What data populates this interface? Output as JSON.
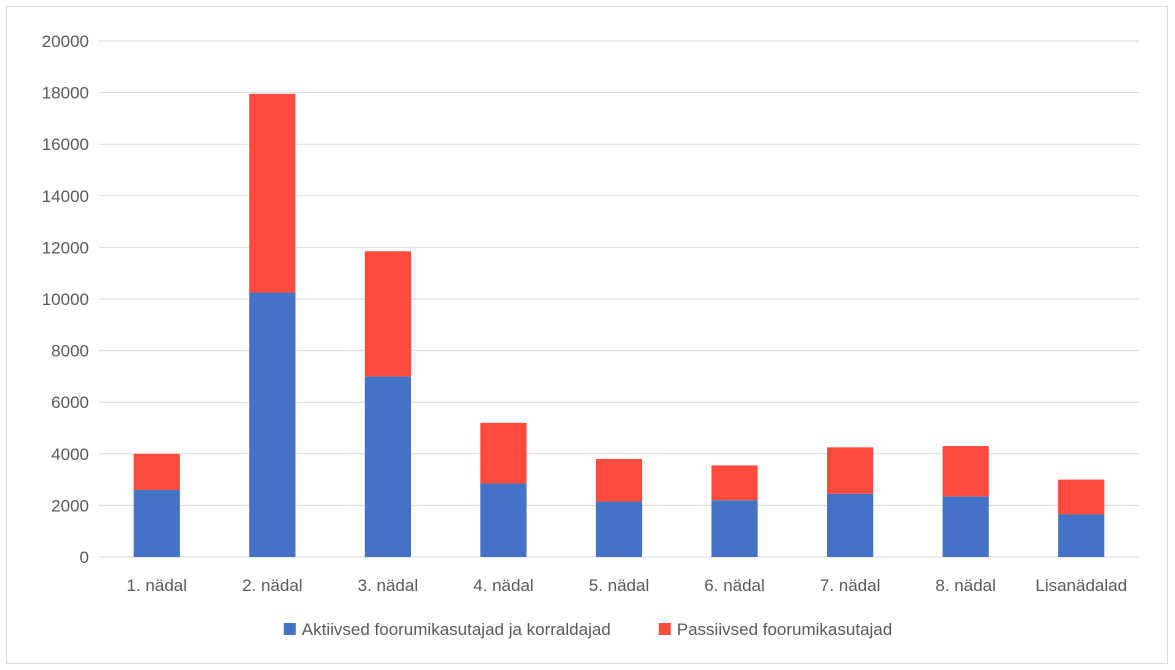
{
  "chart_data": {
    "type": "bar",
    "stacked": true,
    "categories": [
      "1. nädal",
      "2. nädal",
      "3. nädal",
      "4. nädal",
      "5. nädal",
      "6. nädal",
      "7. nädal",
      "8. nädal",
      "Lisanädalad"
    ],
    "series": [
      {
        "name": "Aktiivsed foorumikasutajad ja korraldajad",
        "color": "#4472c4",
        "values": [
          2600,
          10250,
          7000,
          2850,
          2150,
          2200,
          2450,
          2350,
          1650
        ]
      },
      {
        "name": "Passiivsed foorumikasutajad",
        "color": "#ff4b3d",
        "values": [
          1400,
          7700,
          4850,
          2350,
          1650,
          1350,
          1800,
          1950,
          1350
        ]
      }
    ],
    "ylim": [
      0,
      20000
    ],
    "yticks": [
      "0",
      "2000",
      "4000",
      "6000",
      "8000",
      "10000",
      "12000",
      "14000",
      "16000",
      "18000",
      "20000"
    ],
    "grid": true,
    "legend_position": "bottom"
  }
}
